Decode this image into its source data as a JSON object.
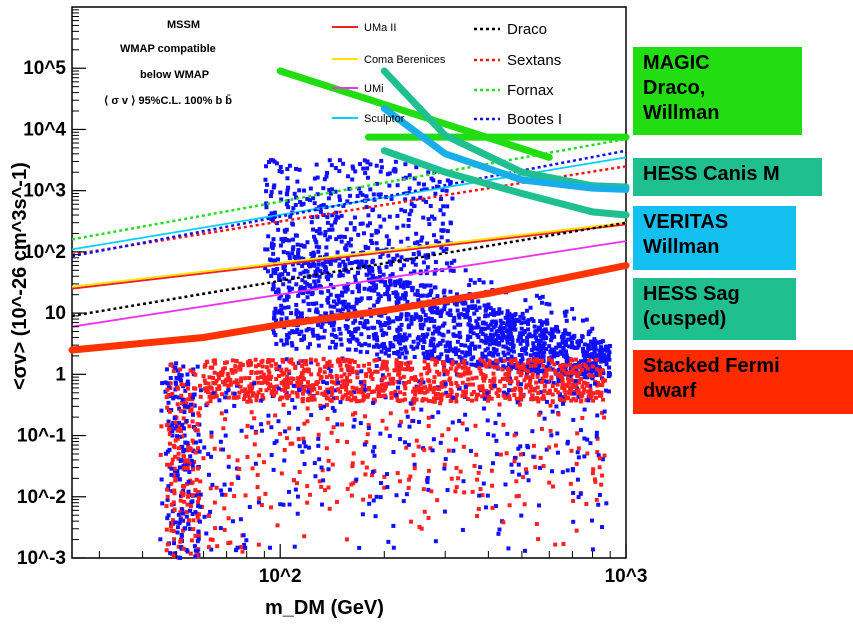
{
  "chart_data": {
    "type": "scatter",
    "title": "",
    "xlabel": "m_DM (GeV)",
    "ylabel": "<σv> (10^-26 cm^3s^-1)",
    "x_scale": "log",
    "y_scale": "log",
    "xlim": [
      25,
      1000
    ],
    "ylim": [
      0.001,
      1000000
    ],
    "x_tick_labels": [
      "10^2",
      "10^3"
    ],
    "y_tick_labels": [
      "10^-3",
      "10^-2",
      "10^-1",
      "1",
      "10",
      "10^2",
      "10^3",
      "10^4",
      "10^5"
    ],
    "legend_left": {
      "title": "MSSM",
      "items": [
        {
          "label": "WMAP compatible",
          "color": "#ff2020"
        },
        {
          "label": "below WMAP",
          "color": "#1010ff"
        },
        {
          "label": "⟨ σ v ⟩ 95%C.L. 100% b b̄",
          "color": "#33cc33"
        }
      ]
    },
    "legend_lines": [
      {
        "name": "UMa II",
        "color": "#ee2020",
        "style": "solid",
        "x": [
          25,
          1000
        ],
        "y": [
          25,
          280
        ]
      },
      {
        "name": "Coma Berenices",
        "color": "#ffe000",
        "style": "solid",
        "x": [
          25,
          1000
        ],
        "y": [
          27,
          300
        ]
      },
      {
        "name": "UMi",
        "color": "#ee33ee",
        "style": "solid",
        "x": [
          25,
          1000
        ],
        "y": [
          6,
          150
        ]
      },
      {
        "name": "Sculptor",
        "color": "#00d0ff",
        "style": "solid",
        "x": [
          25,
          1000
        ],
        "y": [
          110,
          3500
        ]
      },
      {
        "name": "Draco",
        "color": "#000000",
        "style": "dotted",
        "x": [
          25,
          1000
        ],
        "y": [
          9,
          300
        ]
      },
      {
        "name": "Sextans",
        "color": "#ff1010",
        "style": "dotted",
        "x": [
          25,
          1000
        ],
        "y": [
          90,
          2500
        ]
      },
      {
        "name": "Fornax",
        "color": "#22dd22",
        "style": "dotted",
        "x": [
          25,
          1000
        ],
        "y": [
          160,
          7000
        ]
      },
      {
        "name": "Bootes I",
        "color": "#1010ee",
        "style": "dotted",
        "x": [
          25,
          1000
        ],
        "y": [
          85,
          4500
        ]
      }
    ],
    "overlay_curves": [
      {
        "name": "MAGIC Draco, Willman",
        "color": "#22dd11",
        "x": [
          100,
          600
        ],
        "y": [
          90000,
          3500
        ]
      },
      {
        "name": "MAGIC Draco, Willman",
        "color": "#22dd11",
        "x": [
          180,
          1000
        ],
        "y": [
          7500,
          7500
        ]
      },
      {
        "name": "HESS Canis M",
        "color": "#1fbf8f",
        "x": [
          200,
          300,
          500,
          800,
          1000
        ],
        "y": [
          90000,
          8000,
          2000,
          1200,
          1150
        ]
      },
      {
        "name": "VERITAS Willman",
        "color": "#1aaee8",
        "x": [
          200,
          300,
          500,
          800,
          1000
        ],
        "y": [
          22000,
          4000,
          1500,
          1100,
          1050
        ]
      },
      {
        "name": "HESS Sag (cusped)",
        "color": "#1fbf8f",
        "x": [
          200,
          300,
          500,
          800,
          1000
        ],
        "y": [
          4500,
          2000,
          900,
          450,
          400
        ]
      },
      {
        "name": "Stacked Fermi dwarf",
        "color": "#ff3300",
        "x": [
          25,
          60,
          100,
          200,
          400,
          1000
        ],
        "y": [
          2.5,
          4,
          6.5,
          11,
          21,
          60
        ]
      }
    ],
    "scatter_series": [
      {
        "name": "WMAP compatible",
        "color": "#ff2020",
        "region": "x 45-900 GeV, y 0.001-3"
      },
      {
        "name": "below WMAP",
        "color": "#1010ff",
        "region": "x 45-900 GeV, y 0.001-5000"
      }
    ]
  },
  "side_boxes": [
    {
      "label": "MAGIC\nDraco,\nWillman",
      "color": "#22dd11"
    },
    {
      "label": "HESS Canis M",
      "color": "#1fbf8f"
    },
    {
      "label": "VERITAS\nWillman",
      "color": "#14c0f0"
    },
    {
      "label": "HESS Sag\n(cusped)",
      "color": "#1fbf8f"
    },
    {
      "label": "Stacked Fermi\ndwarf",
      "color": "#ff2a00"
    }
  ]
}
